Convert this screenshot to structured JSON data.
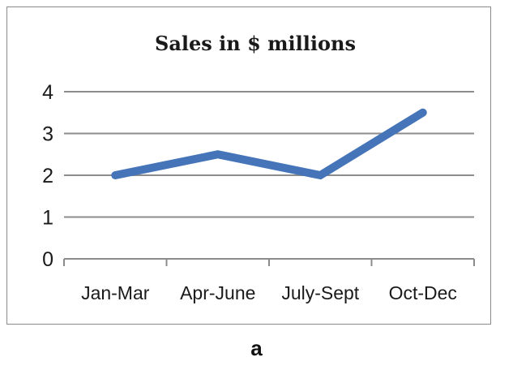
{
  "caption": "a",
  "chart_data": {
    "type": "line",
    "title": "Sales in  $ millions",
    "categories": [
      "Jan-Mar",
      "Apr-June",
      "July-Sept",
      "Oct-Dec"
    ],
    "series": [
      {
        "values": [
          2,
          2.5,
          2,
          3.5
        ],
        "color": "#4575b8"
      }
    ],
    "xlabel": "",
    "ylabel": "",
    "ylim": [
      0,
      4
    ],
    "yticks": [
      0,
      1,
      2,
      3,
      4
    ],
    "grid": true,
    "legend": "none",
    "colors": {
      "gridline": "#8c8c8c",
      "axis": "#8c8c8c"
    }
  }
}
